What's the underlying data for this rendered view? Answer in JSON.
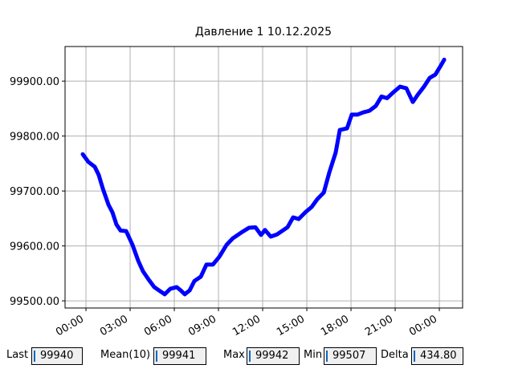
{
  "chart_data": {
    "type": "line",
    "title": "Давление 1 10.12.2025",
    "x": [
      -0.22,
      0.16,
      0.6,
      0.87,
      1.15,
      1.53,
      1.8,
      2.07,
      2.35,
      2.73,
      3.16,
      3.55,
      3.87,
      4.25,
      4.64,
      4.96,
      5.35,
      5.73,
      6.16,
      6.44,
      6.71,
      7.04,
      7.36,
      7.8,
      8.18,
      8.62,
      9.05,
      9.55,
      9.98,
      10.53,
      11.07,
      11.51,
      11.89,
      12.16,
      12.55,
      12.98,
      13.36,
      13.69,
      14.07,
      14.45,
      14.89,
      15.33,
      15.71,
      16.15,
      16.53,
      16.96,
      17.24,
      17.73,
      18.05,
      18.44,
      18.82,
      19.25,
      19.69,
      20.07,
      20.45,
      20.89,
      21.33,
      21.76,
      22.2,
      22.53,
      22.96,
      23.35,
      23.73,
      24.05,
      24.33
    ],
    "series": [
      {
        "color": "#0000ff",
        "values": [
          99767,
          99753,
          99744,
          99729,
          99704,
          99675,
          99661,
          99639,
          99628,
          99627,
          99602,
          99573,
          99554,
          99539,
          99525,
          99519,
          99512,
          99522,
          99525,
          99519,
          99512,
          99519,
          99536,
          99544,
          99566,
          99566,
          99580,
          99602,
          99614,
          99624,
          99633,
          99634,
          99620,
          99629,
          99617,
          99621,
          99628,
          99634,
          99652,
          99649,
          99661,
          99671,
          99685,
          99697,
          99734,
          99770,
          99811,
          99814,
          99839,
          99839,
          99843,
          99846,
          99855,
          99872,
          99869,
          99880,
          99890,
          99887,
          99862,
          99875,
          99890,
          99906,
          99912,
          99926,
          99939
        ]
      }
    ],
    "xlim": [
      -1.42,
      25.58
    ],
    "xticks": [
      {
        "value": 0,
        "label": "00:00"
      },
      {
        "value": 3,
        "label": "03:00"
      },
      {
        "value": 6,
        "label": "06:00"
      },
      {
        "value": 9,
        "label": "09:00"
      },
      {
        "value": 12,
        "label": "12:00"
      },
      {
        "value": 15,
        "label": "15:00"
      },
      {
        "value": 18,
        "label": "18:00"
      },
      {
        "value": 21,
        "label": "21:00"
      },
      {
        "value": 24,
        "label": "00:00"
      }
    ],
    "ylim": [
      99487,
      99963
    ],
    "yticks": [
      {
        "value": 99500,
        "label": "99500.00"
      },
      {
        "value": 99600,
        "label": "99600.00"
      },
      {
        "value": 99700,
        "label": "99700.00"
      },
      {
        "value": 99800,
        "label": "99800.00"
      },
      {
        "value": 99900,
        "label": "99900.00"
      }
    ],
    "grid": true
  },
  "fields": [
    {
      "label": "Last",
      "value": "99940"
    },
    {
      "label": "Mean(10)",
      "value": "99941"
    },
    {
      "label": "Max",
      "value": "99942"
    },
    {
      "label": "Min",
      "value": "99507"
    },
    {
      "label": "Delta",
      "value": "434.80"
    }
  ]
}
